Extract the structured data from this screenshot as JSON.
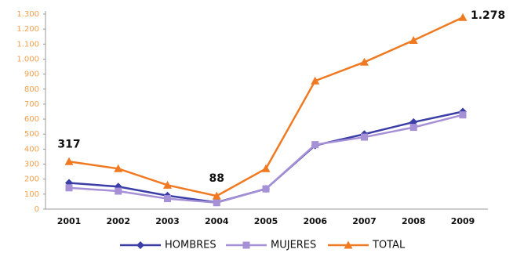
{
  "chart_data": {
    "type": "line",
    "categories": [
      "2001",
      "2002",
      "2003",
      "2004",
      "2005",
      "2006",
      "2007",
      "2008",
      "2009"
    ],
    "series": [
      {
        "name": "HOMBRES",
        "color": "#3a3ea6",
        "marker": "diamond",
        "values": [
          175,
          150,
          90,
          45,
          135,
          425,
          500,
          580,
          650
        ]
      },
      {
        "name": "MUJERES",
        "color": "#a690d6",
        "marker": "square",
        "values": [
          142,
          120,
          70,
          43,
          135,
          430,
          480,
          545,
          628
        ]
      },
      {
        "name": "TOTAL",
        "color": "#f07a22",
        "marker": "triangle",
        "values": [
          317,
          270,
          160,
          88,
          270,
          855,
          980,
          1125,
          1278
        ],
        "value_labels": [
          "317",
          null,
          null,
          "88",
          null,
          null,
          null,
          null,
          "1.278"
        ]
      }
    ],
    "ylim": [
      0,
      1300
    ],
    "yticks": [
      0,
      100,
      200,
      300,
      400,
      500,
      600,
      700,
      800,
      900,
      {
        "value": 1000,
        "label": "1.000"
      },
      {
        "value": 1100,
        "label": "1.100"
      },
      {
        "value": 1200,
        "label": "1.200"
      },
      {
        "value": 1300,
        "label": "1.300"
      }
    ],
    "grid": false,
    "legend": "bottom"
  }
}
